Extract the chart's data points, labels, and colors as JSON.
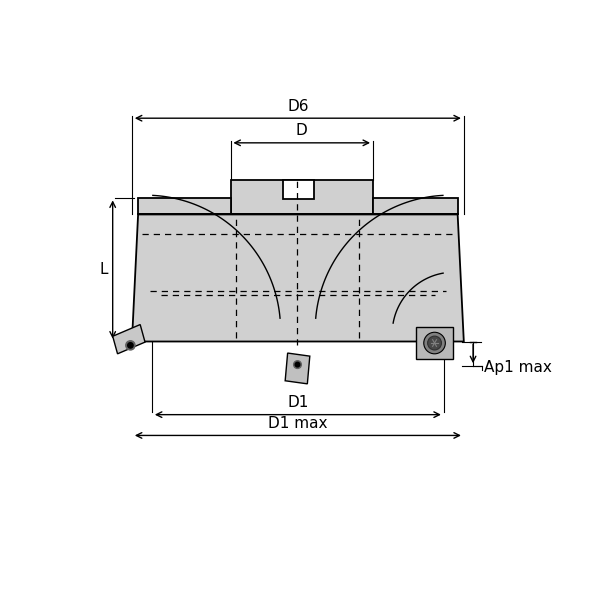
{
  "bg_color": "#ffffff",
  "line_color": "#000000",
  "fill_color": "#d0d0d0",
  "fill_dark": "#b8b8b8",
  "figsize": [
    6.0,
    6.0
  ],
  "dpi": 100,
  "labels": {
    "D6": "D6",
    "D": "D",
    "D1": "D1",
    "D1max": "D1 max",
    "L": "L",
    "Ap1max": "Ap1 max"
  },
  "font_size": 11
}
